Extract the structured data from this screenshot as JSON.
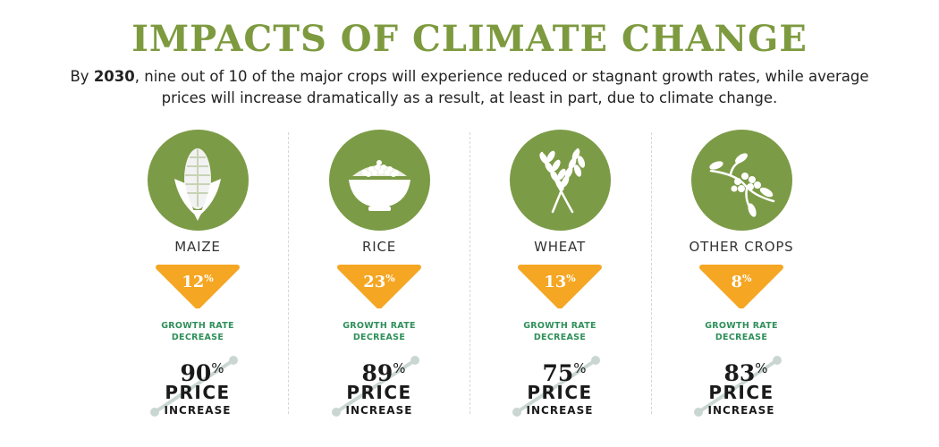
{
  "header": {
    "title": "IMPACTS OF CLIMATE CHANGE",
    "intro_prefix": "By ",
    "intro_bold": "2030",
    "intro_rest": ", nine out of 10 of the major crops will experience reduced or stagnant growth rates, while average prices will increase dramatically as a result, at least in part, due to climate change."
  },
  "labels": {
    "growth_line1": "GROWTH RATE",
    "growth_line2": "DECREASE",
    "price_word": "PRICE",
    "price_sub": "INCREASE",
    "percent": "%"
  },
  "colors": {
    "title_green": "#7d9a3f",
    "circle_green": "#7c9b46",
    "triangle_orange": "#f5a623",
    "label_green": "#2f8f5a",
    "arrow_gray": "#c9d6d2"
  },
  "crops": [
    {
      "name": "MAIZE",
      "icon": "corn-icon",
      "growth_decrease": "12",
      "price_increase": "90"
    },
    {
      "name": "RICE",
      "icon": "rice-bowl-icon",
      "growth_decrease": "23",
      "price_increase": "89"
    },
    {
      "name": "WHEAT",
      "icon": "wheat-icon",
      "growth_decrease": "13",
      "price_increase": "75"
    },
    {
      "name": "OTHER CROPS",
      "icon": "seeds-branch-icon",
      "growth_decrease": "8",
      "price_increase": "83"
    }
  ]
}
